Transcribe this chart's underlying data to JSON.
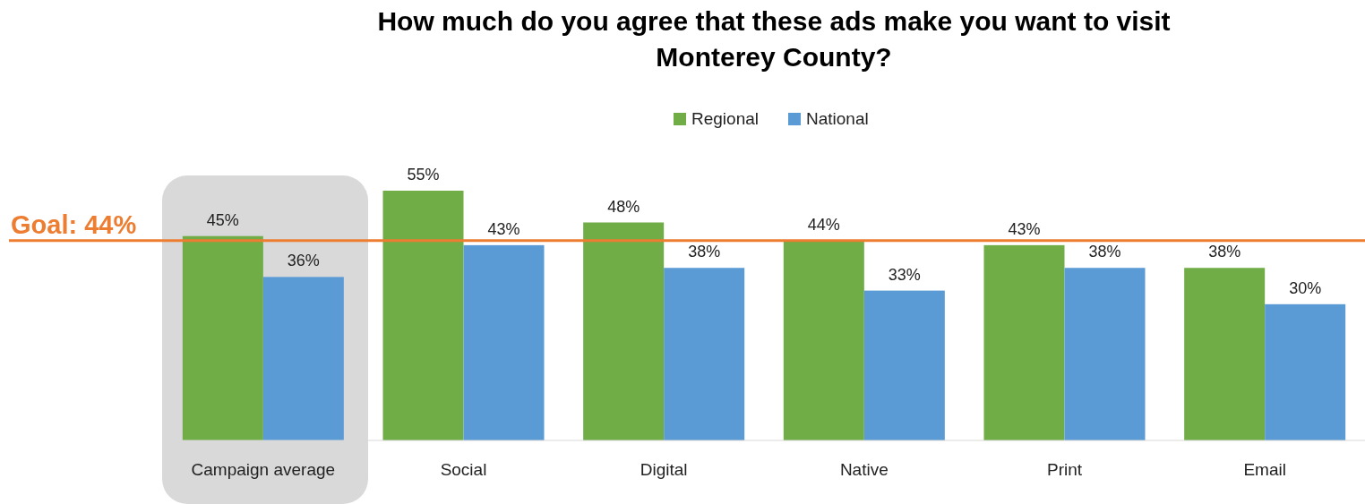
{
  "chart_data": {
    "type": "bar",
    "title": "How much do you agree that these ads make you want to visit Monterey County?",
    "categories": [
      "Campaign average",
      "Social",
      "Digital",
      "Native",
      "Print",
      "Email"
    ],
    "series": [
      {
        "name": "Regional",
        "color": "#70ad47",
        "values": [
          45,
          55,
          48,
          44,
          43,
          38
        ],
        "value_labels": [
          "45%",
          "55%",
          "48%",
          "44%",
          "43%",
          "38%"
        ]
      },
      {
        "name": "National",
        "color": "#5b9bd5",
        "values": [
          36,
          43,
          38,
          33,
          38,
          30
        ],
        "value_labels": [
          "36%",
          "43%",
          "38%",
          "33%",
          "38%",
          "30%"
        ]
      }
    ],
    "legend": "top",
    "grid": false,
    "ref_lines": [
      {
        "axis": "y",
        "value": 44,
        "label": "Goal: 44%",
        "color": "#ed7d31"
      }
    ]
  }
}
